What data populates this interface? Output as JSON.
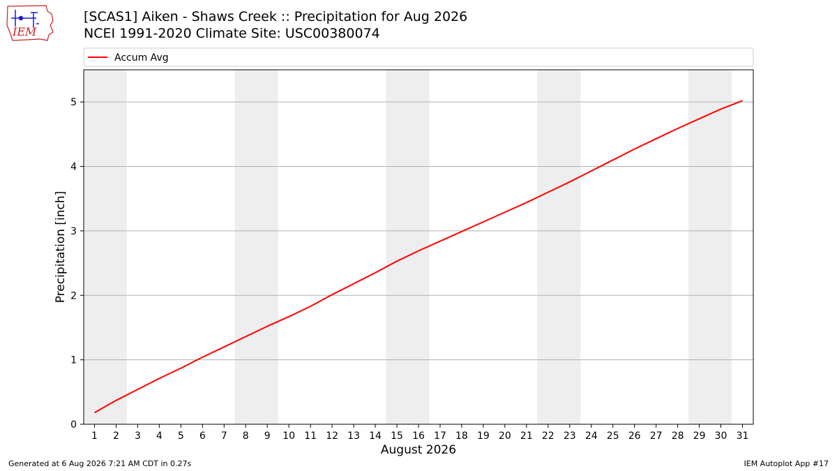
{
  "header": {
    "title_line1": "[SCAS1] Aiken - Shaws Creek :: Precipitation for Aug 2026",
    "title_line2": "NCEI 1991-2020 Climate Site: USC00380074",
    "logo_text": "IEM"
  },
  "footer": {
    "generated": "Generated at 6 Aug 2026 7:21 AM CDT in 0.27s",
    "app": "IEM Autoplot App #17"
  },
  "colors": {
    "accum_line": "#ff0000",
    "weekend_band": "#eeeeee",
    "grid": "#b0b0b0",
    "logo_blue": "#1a1ad0",
    "logo_red": "#cc2222"
  },
  "chart_data": {
    "type": "line",
    "title": "",
    "xlabel": "August 2026",
    "ylabel": "Precipitation [inch]",
    "x": [
      1,
      2,
      3,
      4,
      5,
      6,
      7,
      8,
      9,
      10,
      11,
      12,
      13,
      14,
      15,
      16,
      17,
      18,
      19,
      20,
      21,
      22,
      23,
      24,
      25,
      26,
      27,
      28,
      29,
      30,
      31
    ],
    "xlim": [
      0.5,
      31.5
    ],
    "ylim": [
      0,
      5.5
    ],
    "yticks": [
      0,
      1,
      2,
      3,
      4,
      5
    ],
    "grid": "y-major",
    "weekends": [
      [
        1,
        2
      ],
      [
        8,
        9
      ],
      [
        15,
        16
      ],
      [
        22,
        23
      ],
      [
        29,
        30
      ]
    ],
    "legend": {
      "position": "top",
      "entries": [
        "Accum Avg"
      ]
    },
    "series": [
      {
        "name": "Accum Avg",
        "values": [
          0.18,
          0.37,
          0.54,
          0.71,
          0.87,
          1.04,
          1.2,
          1.36,
          1.52,
          1.67,
          1.83,
          2.01,
          2.18,
          2.35,
          2.53,
          2.69,
          2.84,
          2.99,
          3.14,
          3.29,
          3.44,
          3.6,
          3.76,
          3.93,
          4.1,
          4.27,
          4.43,
          4.59,
          4.74,
          4.89,
          5.02
        ]
      }
    ]
  }
}
